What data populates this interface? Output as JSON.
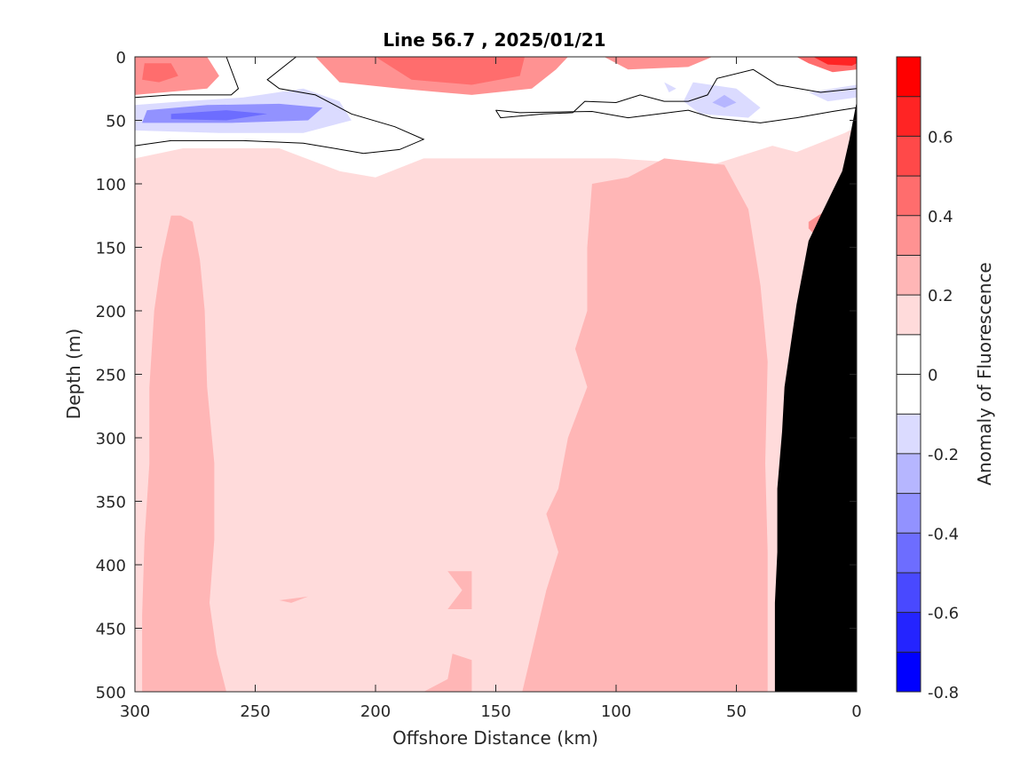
{
  "chart_data": {
    "type": "heatmap",
    "title": "Line 56.7 , 2025/01/21",
    "xlabel": "Offshore Distance (km)",
    "ylabel": "Depth (m)",
    "xlim": [
      0,
      300
    ],
    "x_reversed": true,
    "ylim": [
      0,
      500
    ],
    "y_reversed": true,
    "x_ticks": [
      300,
      250,
      200,
      150,
      100,
      50,
      0
    ],
    "y_ticks": [
      0,
      50,
      100,
      150,
      200,
      250,
      300,
      350,
      400,
      450,
      500
    ],
    "colorbar": {
      "label": "Anomaly of Fluorescence",
      "limits": [
        -0.8,
        0.8
      ],
      "ticks": [
        0.6,
        0.4,
        0.2,
        0,
        -0.2,
        -0.4,
        -0.6,
        -0.8
      ],
      "levels": [
        0.8,
        0.7,
        0.6,
        0.5,
        0.4,
        0.3,
        0.2,
        0.1,
        0,
        -0.1,
        -0.2,
        -0.3,
        -0.4,
        -0.5,
        -0.6,
        -0.7,
        -0.8
      ],
      "colors_top_to_bottom": [
        "#ff0000",
        "#ff2424",
        "#ff4949",
        "#ff6d6d",
        "#ff9292",
        "#ffb6b6",
        "#ffdbdb",
        "#ffffff",
        "#ffffff",
        "#dbdbff",
        "#b6b6ff",
        "#9292ff",
        "#6d6dff",
        "#4949ff",
        "#2424ff",
        "#0000ff"
      ]
    },
    "grid": false,
    "contour_line_levels": [
      0
    ],
    "regions": [
      {
        "anomaly": 0.15,
        "description_bin": "0.1 to 0.2",
        "polygon": [
          [
            300,
            80
          ],
          [
            280,
            72
          ],
          [
            240,
            72
          ],
          [
            215,
            90
          ],
          [
            200,
            95
          ],
          [
            180,
            80
          ],
          [
            150,
            80
          ],
          [
            100,
            80
          ],
          [
            60,
            85
          ],
          [
            35,
            70
          ],
          [
            25,
            75
          ],
          [
            5,
            60
          ],
          [
            0,
            55
          ],
          [
            0,
            500
          ],
          [
            300,
            500
          ]
        ]
      },
      {
        "anomaly": 0.25,
        "description_bin": "0.2 to 0.3",
        "polygon": [
          [
            281,
            125
          ],
          [
            276,
            130
          ],
          [
            273,
            160
          ],
          [
            271,
            200
          ],
          [
            270,
            260
          ],
          [
            267,
            320
          ],
          [
            267,
            380
          ],
          [
            269,
            430
          ],
          [
            266,
            470
          ],
          [
            262,
            500
          ],
          [
            297,
            500
          ],
          [
            297,
            440
          ],
          [
            296,
            380
          ],
          [
            294,
            320
          ],
          [
            294,
            260
          ],
          [
            292,
            200
          ],
          [
            289,
            160
          ],
          [
            285,
            125
          ]
        ]
      },
      {
        "anomaly": 0.25,
        "description_bin": "0.2 to 0.3",
        "polygon": [
          [
            95,
            95
          ],
          [
            110,
            100
          ],
          [
            112,
            150
          ],
          [
            112,
            200
          ],
          [
            117,
            230
          ],
          [
            112,
            260
          ],
          [
            120,
            300
          ],
          [
            124,
            340
          ],
          [
            129,
            360
          ],
          [
            124,
            390
          ],
          [
            129,
            420
          ],
          [
            134,
            460
          ],
          [
            139,
            500
          ],
          [
            37,
            500
          ],
          [
            37,
            390
          ],
          [
            38,
            320
          ],
          [
            37,
            240
          ],
          [
            40,
            180
          ],
          [
            45,
            120
          ],
          [
            55,
            85
          ],
          [
            80,
            80
          ]
        ]
      },
      {
        "anomaly": 0.25,
        "description_bin": "0.2 to 0.3",
        "polygon": [
          [
            170,
            405
          ],
          [
            160,
            405
          ],
          [
            160,
            435
          ],
          [
            170,
            435
          ],
          [
            164,
            420
          ]
        ]
      },
      {
        "anomaly": 0.25,
        "description_bin": "0.2 to 0.3",
        "polygon": [
          [
            168,
            470
          ],
          [
            160,
            475
          ],
          [
            160,
            500
          ],
          [
            180,
            500
          ],
          [
            170,
            490
          ]
        ]
      },
      {
        "anomaly": 0.25,
        "description_bin": "0.2 to 0.3",
        "polygon": [
          [
            228,
            425
          ],
          [
            235,
            430
          ],
          [
            240,
            428
          ],
          [
            228,
            425
          ]
        ]
      },
      {
        "anomaly": 0.35,
        "description_bin": "0.3 to 0.4",
        "polygon": [
          [
            20,
            130
          ],
          [
            8,
            115
          ],
          [
            15,
            145
          ],
          [
            20,
            135
          ]
        ]
      },
      {
        "anomaly": 0.3,
        "description_bin": "0.2 to 0.4",
        "polygon": [
          [
            300,
            0
          ],
          [
            270,
            0
          ],
          [
            265,
            15
          ],
          [
            270,
            25
          ],
          [
            300,
            30
          ]
        ]
      },
      {
        "anomaly": 0.4,
        "description_bin": "0.3 to 0.5",
        "polygon": [
          [
            296,
            5
          ],
          [
            285,
            5
          ],
          [
            282,
            15
          ],
          [
            290,
            20
          ],
          [
            297,
            18
          ]
        ]
      },
      {
        "anomaly": 0.3,
        "description_bin": "0.2 to 0.4",
        "polygon": [
          [
            225,
            0
          ],
          [
            215,
            20
          ],
          [
            190,
            25
          ],
          [
            160,
            30
          ],
          [
            135,
            25
          ],
          [
            125,
            10
          ],
          [
            120,
            0
          ]
        ]
      },
      {
        "anomaly": 0.45,
        "description_bin": "0.4 to 0.6",
        "polygon": [
          [
            200,
            0
          ],
          [
            185,
            18
          ],
          [
            160,
            22
          ],
          [
            140,
            15
          ],
          [
            138,
            0
          ]
        ]
      },
      {
        "anomaly": 0.3,
        "description_bin": "0.2 to 0.4",
        "polygon": [
          [
            105,
            0
          ],
          [
            95,
            10
          ],
          [
            70,
            8
          ],
          [
            60,
            0
          ]
        ]
      },
      {
        "anomaly": 0.45,
        "description_bin": "0.4 to 0.6",
        "polygon": [
          [
            25,
            0
          ],
          [
            20,
            5
          ],
          [
            10,
            12
          ],
          [
            0,
            10
          ],
          [
            0,
            0
          ]
        ]
      },
      {
        "anomaly": 0.65,
        "description_bin": "0.6 to 0.8",
        "polygon": [
          [
            18,
            0
          ],
          [
            12,
            6
          ],
          [
            2,
            7
          ],
          [
            0,
            5
          ],
          [
            0,
            0
          ]
        ]
      },
      {
        "anomaly": -0.2,
        "description_bin": "-0.3 to -0.1",
        "polygon": [
          [
            300,
            38
          ],
          [
            280,
            35
          ],
          [
            255,
            32
          ],
          [
            230,
            25
          ],
          [
            215,
            35
          ],
          [
            210,
            50
          ],
          [
            230,
            60
          ],
          [
            265,
            60
          ],
          [
            300,
            58
          ]
        ]
      },
      {
        "anomaly": -0.35,
        "description_bin": "-0.4 to -0.3",
        "polygon": [
          [
            295,
            42
          ],
          [
            270,
            38
          ],
          [
            240,
            37
          ],
          [
            222,
            40
          ],
          [
            228,
            50
          ],
          [
            260,
            52
          ],
          [
            297,
            52
          ]
        ]
      },
      {
        "anomaly": -0.5,
        "description_bin": "-0.6 to -0.4",
        "polygon": [
          [
            285,
            45
          ],
          [
            262,
            42
          ],
          [
            245,
            45
          ],
          [
            262,
            50
          ],
          [
            285,
            49
          ]
        ]
      },
      {
        "anomaly": -0.2,
        "description_bin": "-0.3 to -0.1",
        "polygon": [
          [
            68,
            20
          ],
          [
            50,
            25
          ],
          [
            40,
            40
          ],
          [
            45,
            48
          ],
          [
            65,
            45
          ],
          [
            72,
            35
          ]
        ]
      },
      {
        "anomaly": -0.3,
        "description_bin": "-0.4 to -0.2",
        "polygon": [
          [
            55,
            30
          ],
          [
            50,
            36
          ],
          [
            55,
            40
          ],
          [
            60,
            36
          ]
        ]
      },
      {
        "anomaly": -0.15,
        "description_bin": "-0.2 to -0.1",
        "polygon": [
          [
            80,
            20
          ],
          [
            75,
            25
          ],
          [
            78,
            28
          ]
        ]
      },
      {
        "anomaly": -0.15,
        "description_bin": "-0.2 to -0.1",
        "polygon": [
          [
            20,
            28
          ],
          [
            0,
            22
          ],
          [
            0,
            32
          ],
          [
            12,
            35
          ]
        ]
      }
    ],
    "zero_contours": [
      [
        [
          300,
          32
        ],
        [
          285,
          30
        ],
        [
          260,
          30
        ],
        [
          257,
          25
        ],
        [
          262,
          0
        ]
      ],
      [
        [
          300,
          70
        ],
        [
          285,
          66
        ],
        [
          255,
          66
        ],
        [
          230,
          68
        ],
        [
          205,
          76
        ],
        [
          190,
          73
        ],
        [
          180,
          65
        ],
        [
          192,
          55
        ],
        [
          210,
          45
        ],
        [
          225,
          30
        ],
        [
          240,
          25
        ],
        [
          245,
          18
        ],
        [
          233,
          0
        ]
      ],
      [
        [
          150,
          42
        ],
        [
          148,
          48
        ],
        [
          130,
          45
        ],
        [
          118,
          44
        ],
        [
          113,
          35
        ],
        [
          100,
          36
        ],
        [
          90,
          30
        ],
        [
          80,
          35
        ],
        [
          70,
          35
        ],
        [
          62,
          30
        ],
        [
          58,
          17
        ],
        [
          43,
          10
        ],
        [
          33,
          22
        ],
        [
          15,
          28
        ],
        [
          0,
          25
        ]
      ],
      [
        [
          150,
          42
        ],
        [
          140,
          44
        ],
        [
          110,
          43
        ],
        [
          95,
          48
        ],
        [
          70,
          42
        ],
        [
          60,
          48
        ],
        [
          40,
          52
        ],
        [
          25,
          48
        ],
        [
          10,
          43
        ],
        [
          0,
          40
        ]
      ]
    ],
    "bathymetry_mask": {
      "color": "#000000",
      "polygon": [
        [
          0,
          35
        ],
        [
          3,
          65
        ],
        [
          6,
          90
        ],
        [
          15,
          125
        ],
        [
          20,
          145
        ],
        [
          25,
          195
        ],
        [
          30,
          260
        ],
        [
          31,
          295
        ],
        [
          33,
          340
        ],
        [
          33,
          390
        ],
        [
          34,
          430
        ],
        [
          34,
          470
        ],
        [
          34,
          500
        ],
        [
          0,
          500
        ]
      ]
    }
  }
}
